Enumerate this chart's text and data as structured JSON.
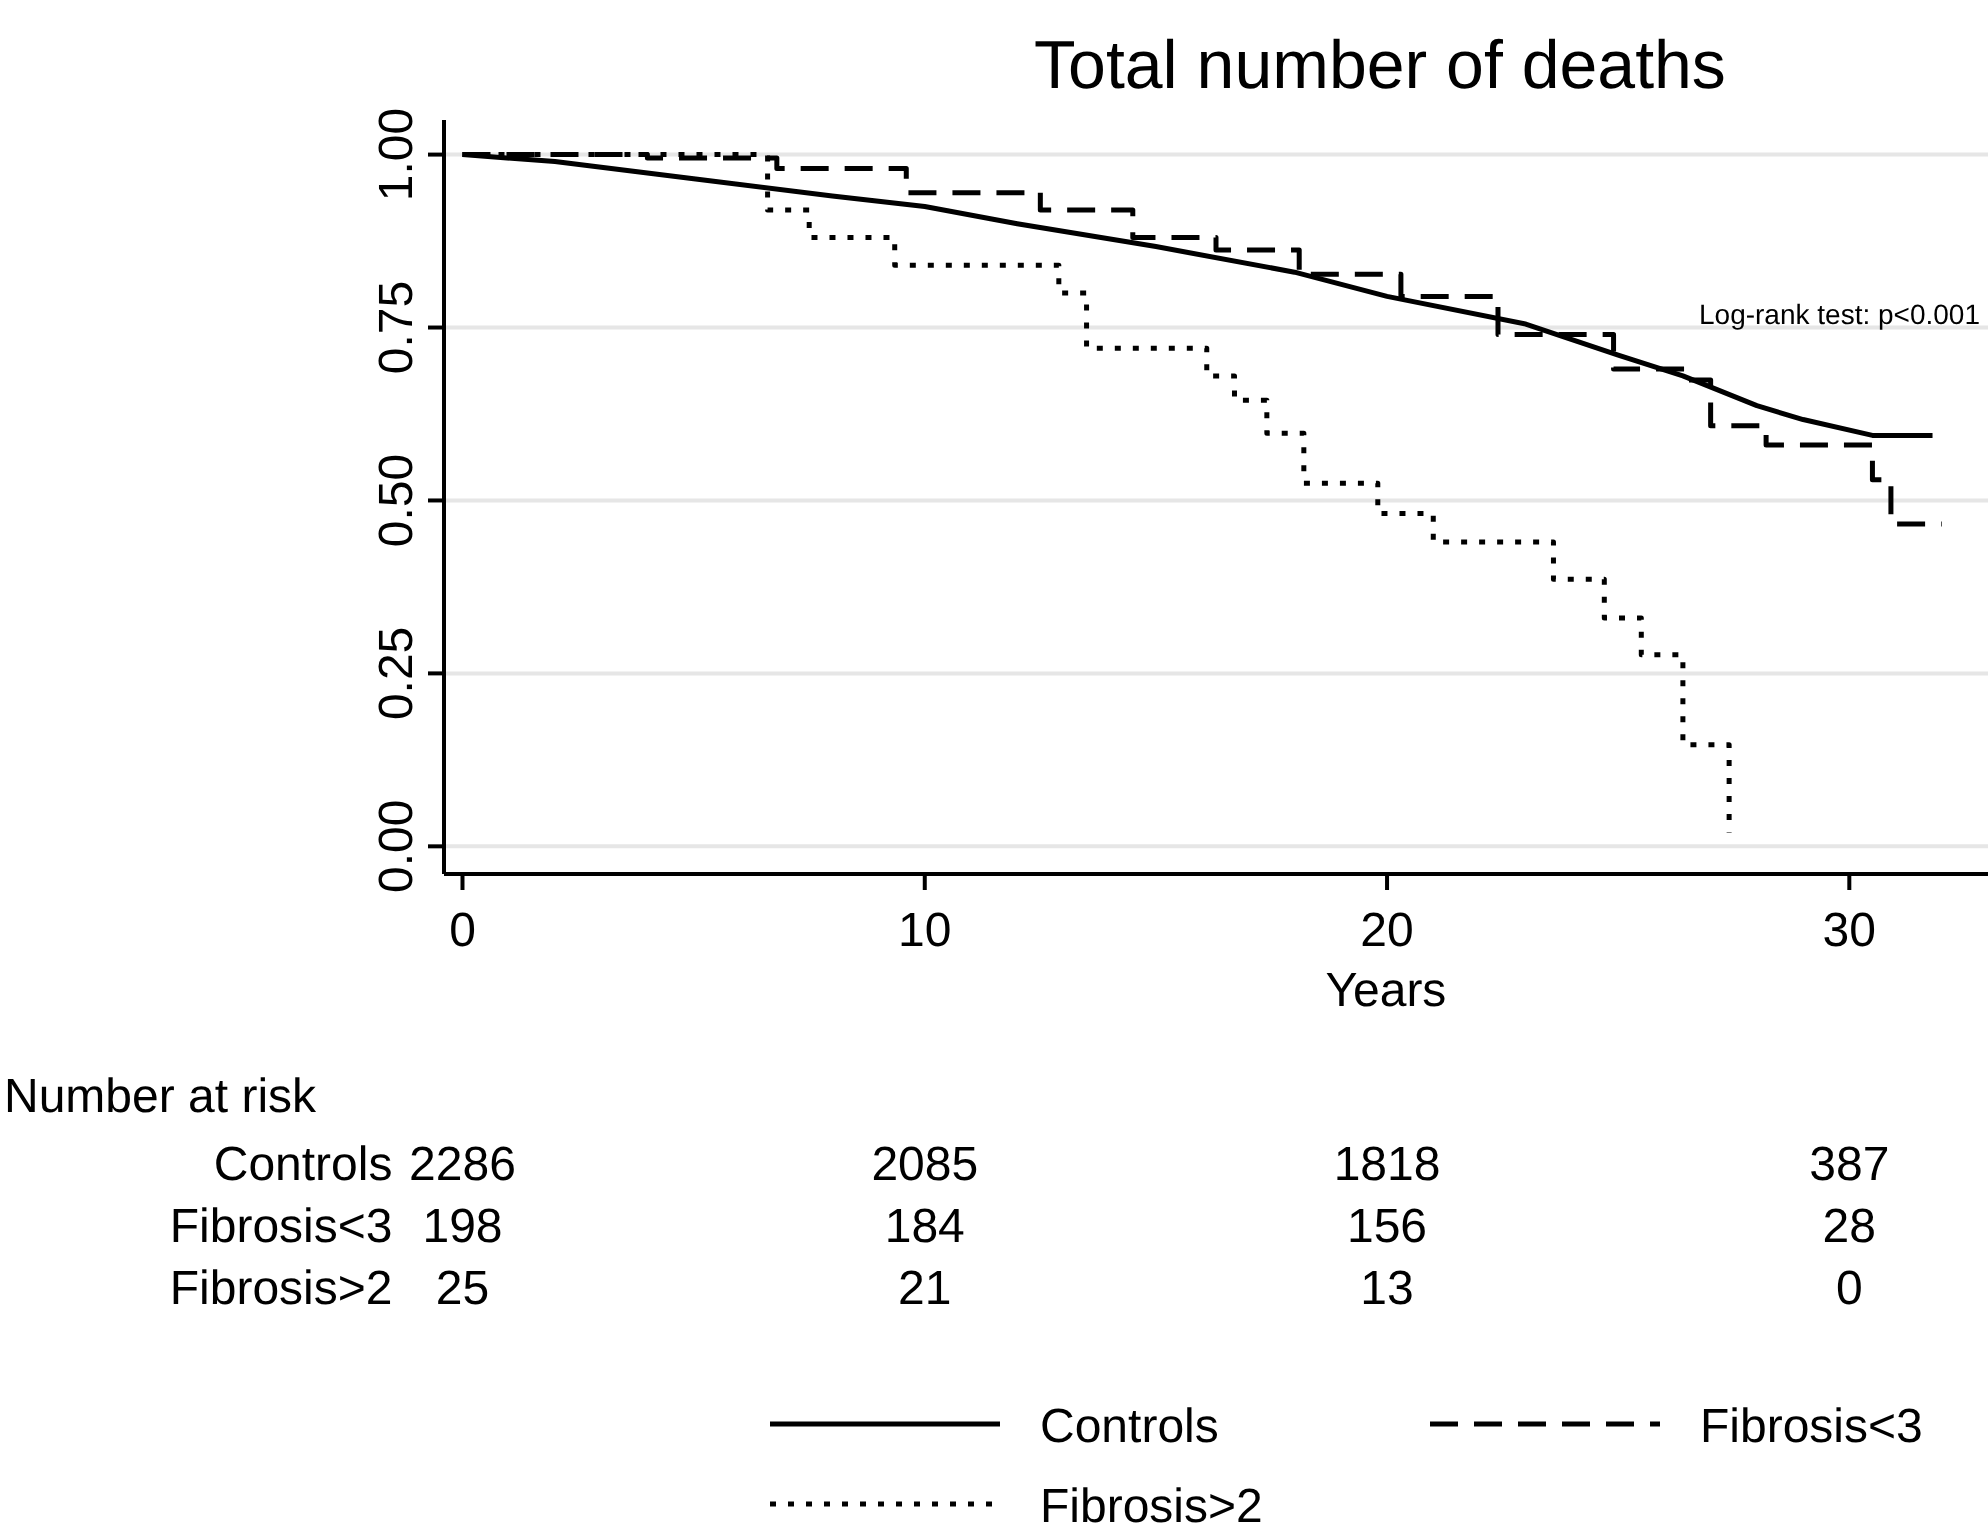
{
  "chart_data": {
    "type": "line",
    "title": "Total number of deaths",
    "xlabel": "Years",
    "xlim": [
      -0.4,
      33
    ],
    "xticks": [
      0,
      10,
      20,
      30
    ],
    "ylim": [
      -0.04,
      1.05
    ],
    "yticks": [
      {
        "value": 0,
        "label": "0.00"
      },
      {
        "value": 0.25,
        "label": "0.25"
      },
      {
        "value": 0.5,
        "label": "0.50"
      },
      {
        "value": 0.75,
        "label": "0.75"
      },
      {
        "value": 1,
        "label": "1.00"
      }
    ],
    "grid": "y",
    "legend": "bottom",
    "marker": "none",
    "annotations": [
      "Log-rank test: p<0.001",
      "Number at risk",
      "2286",
      "2085",
      "1818",
      "387",
      "198",
      "184",
      "156",
      "28",
      "25",
      "21",
      "13",
      "0"
    ],
    "series": [
      {
        "name": "Controls",
        "type": "line",
        "line_style": "solid",
        "color": "#000000",
        "x": [
          0,
          2,
          5,
          8,
          10,
          12,
          15,
          18,
          20,
          23,
          25,
          26.4,
          28,
          29,
          30.5,
          31.8
        ],
        "values": [
          1,
          0.99,
          0.965,
          0.94,
          0.925,
          0.9,
          0.867,
          0.83,
          0.795,
          0.755,
          0.71,
          0.68,
          0.637,
          0.617,
          0.594,
          0.594
        ]
      },
      {
        "name": "Fibrosis<3",
        "type": "step",
        "line_style": "dashed",
        "color": "#000000",
        "x": [
          0,
          4,
          6.8,
          9.6,
          12.5,
          14.5,
          16.3,
          18.1,
          20.3,
          22.4,
          24.9,
          26.5,
          27,
          28.2,
          30.5,
          30.9,
          32
        ],
        "values": [
          1,
          0.995,
          0.98,
          0.945,
          0.92,
          0.88,
          0.862,
          0.827,
          0.795,
          0.74,
          0.69,
          0.674,
          0.608,
          0.58,
          0.53,
          0.466,
          0.466
        ]
      },
      {
        "name": "Fibrosis>2",
        "type": "step",
        "line_style": "dotted",
        "color": "#000000",
        "x": [
          0,
          6.6,
          7.5,
          9.35,
          12.9,
          13.5,
          16.1,
          16.7,
          17.4,
          18.2,
          19.8,
          21,
          23.6,
          24.7,
          25.5,
          26.4,
          27.4
        ],
        "values": [
          1,
          0.92,
          0.88,
          0.84,
          0.8,
          0.72,
          0.68,
          0.645,
          0.597,
          0.525,
          0.481,
          0.44,
          0.386,
          0.33,
          0.277,
          0.147,
          0.02
        ]
      }
    ]
  }
}
